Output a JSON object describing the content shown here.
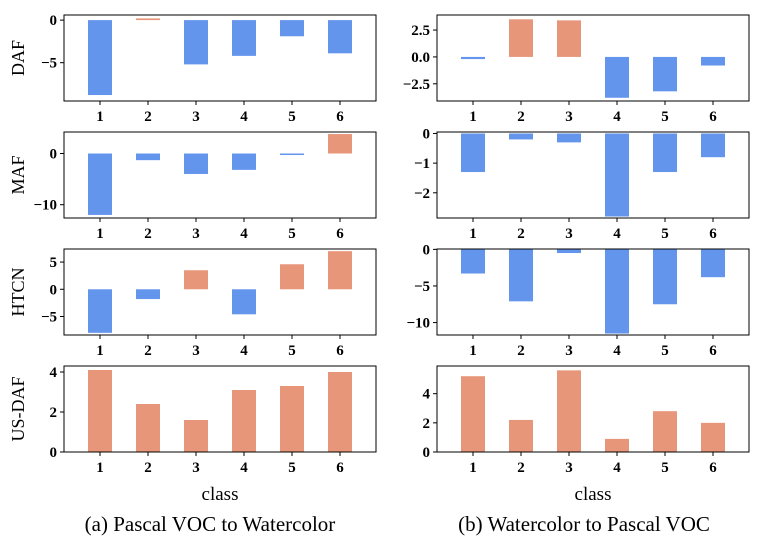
{
  "colors": {
    "positive": "#e8967a",
    "negative": "#6495ed",
    "axis": "#000000"
  },
  "captions": {
    "left": "(a) Pascal VOC to Watercolor",
    "right": "(b)  Watercolor to Pascal VOC"
  },
  "xlabels": {
    "left": "class",
    "right": "class"
  },
  "chart_data": [
    {
      "type": "bar",
      "row_label": "DAF",
      "categories": [
        "1",
        "2",
        "3",
        "4",
        "5",
        "6"
      ],
      "values": [
        -8.8,
        0.2,
        -5.2,
        -4.2,
        -1.9,
        -3.9
      ],
      "ylim": [
        -9.5,
        0.6
      ],
      "yticks": [
        0,
        -5
      ],
      "ytick_labels": [
        "0",
        "−5"
      ]
    },
    {
      "type": "bar",
      "row_label": "",
      "categories": [
        "1",
        "2",
        "3",
        "4",
        "5",
        "6"
      ],
      "values": [
        -0.2,
        3.5,
        3.4,
        -3.8,
        -3.2,
        -0.8
      ],
      "ylim": [
        -4.1,
        3.9
      ],
      "yticks": [
        2.5,
        0.0,
        -2.5
      ],
      "ytick_labels": [
        "2.5",
        "0.0",
        "−2.5"
      ]
    },
    {
      "type": "bar",
      "row_label": "MAF",
      "categories": [
        "1",
        "2",
        "3",
        "4",
        "5",
        "6"
      ],
      "values": [
        -12.0,
        -1.3,
        -4.0,
        -3.2,
        -0.3,
        3.8
      ],
      "ylim": [
        -12.6,
        4.2
      ],
      "yticks": [
        0,
        -10
      ],
      "ytick_labels": [
        "0",
        "−10"
      ]
    },
    {
      "type": "bar",
      "row_label": "",
      "categories": [
        "1",
        "2",
        "3",
        "4",
        "5",
        "6"
      ],
      "values": [
        -1.3,
        -0.2,
        -0.3,
        -2.8,
        -1.3,
        -0.8
      ],
      "ylim": [
        -2.85,
        0.05
      ],
      "yticks": [
        0,
        -1,
        -2
      ],
      "ytick_labels": [
        "0",
        "−1",
        "−2"
      ]
    },
    {
      "type": "bar",
      "row_label": "HTCN",
      "categories": [
        "1",
        "2",
        "3",
        "4",
        "5",
        "6"
      ],
      "values": [
        -8.0,
        -1.8,
        3.5,
        -4.6,
        4.6,
        7.0
      ],
      "ylim": [
        -8.4,
        7.4
      ],
      "yticks": [
        5,
        0,
        -5
      ],
      "ytick_labels": [
        "5",
        "0",
        "−5"
      ]
    },
    {
      "type": "bar",
      "row_label": "",
      "categories": [
        "1",
        "2",
        "3",
        "4",
        "5",
        "6"
      ],
      "values": [
        -3.3,
        -7.1,
        -0.5,
        -11.5,
        -7.5,
        -3.8
      ],
      "ylim": [
        -11.7,
        0.05
      ],
      "yticks": [
        0,
        -5,
        -10
      ],
      "ytick_labels": [
        "0",
        "−5",
        "−10"
      ]
    },
    {
      "type": "bar",
      "row_label": "US-DAF",
      "categories": [
        "1",
        "2",
        "3",
        "4",
        "5",
        "6"
      ],
      "values": [
        4.1,
        2.4,
        1.6,
        3.1,
        3.3,
        4.0
      ],
      "ylim": [
        0,
        4.3
      ],
      "yticks": [
        4,
        2,
        0
      ],
      "ytick_labels": [
        "4",
        "2",
        "0"
      ]
    },
    {
      "type": "bar",
      "row_label": "",
      "categories": [
        "1",
        "2",
        "3",
        "4",
        "5",
        "6"
      ],
      "values": [
        5.2,
        2.2,
        5.6,
        0.9,
        2.8,
        2.0
      ],
      "ylim": [
        0,
        5.9
      ],
      "yticks": [
        4,
        2,
        0
      ],
      "ytick_labels": [
        "4",
        "2",
        "0"
      ]
    }
  ]
}
